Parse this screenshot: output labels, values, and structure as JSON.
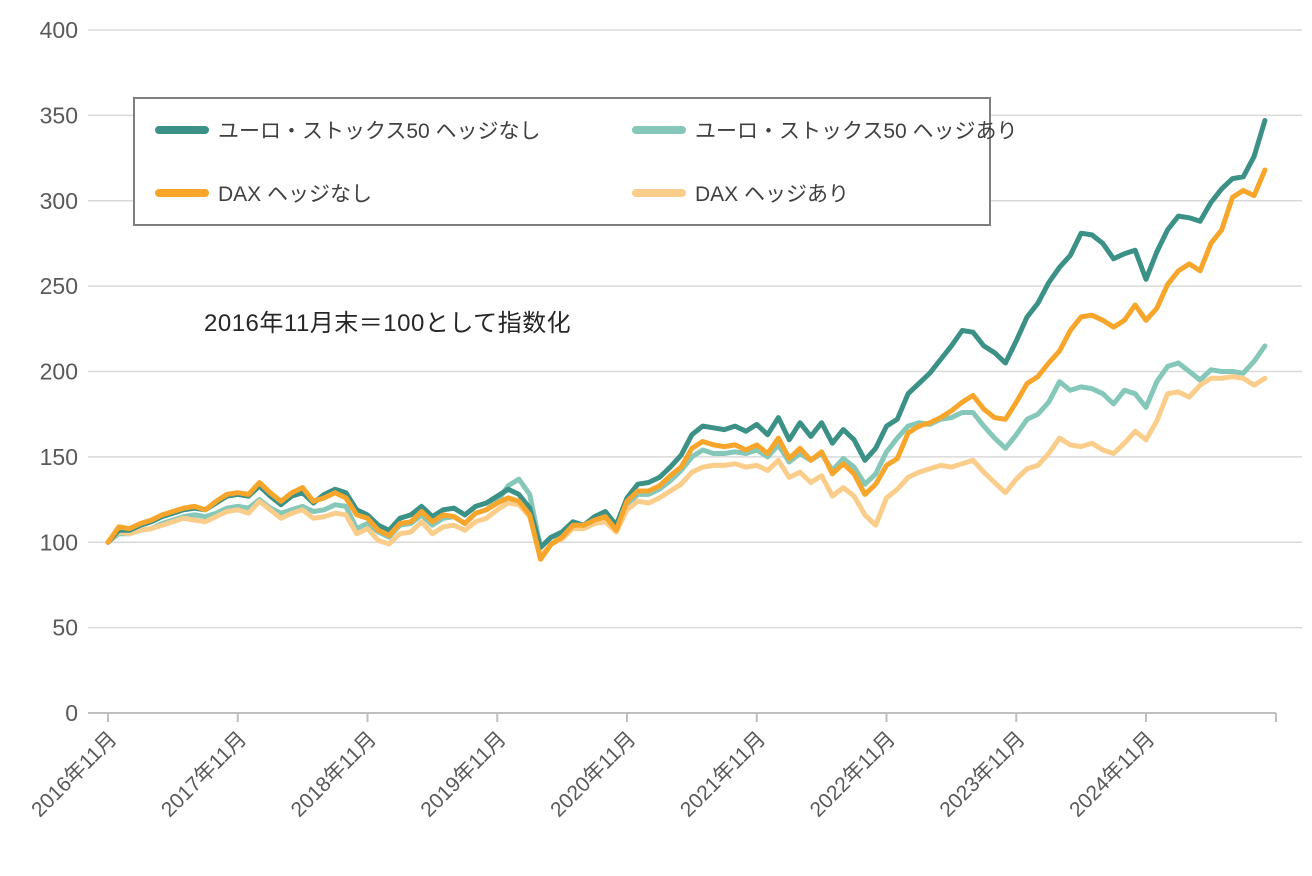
{
  "chart_data": {
    "type": "line",
    "title": "",
    "note": "2016年11月末＝100として指数化",
    "x_start": "2016-11",
    "x_end": "2025-10",
    "x_frequency": "monthly",
    "x_tick_labels": [
      "2016年11月",
      "2017年11月",
      "2018年11月",
      "2019年11月",
      "2020年11月",
      "2021年11月",
      "2022年11月",
      "2023年11月",
      "2024年11月"
    ],
    "y_ticks": [
      0,
      50,
      100,
      150,
      200,
      250,
      300,
      350,
      400
    ],
    "ylim": [
      0,
      400
    ],
    "grid": "horizontal",
    "legend_position": "top",
    "series": [
      {
        "key": "es50-unhedged",
        "name": "ユーロ・ストックス50 ヘッジなし",
        "color": "#3B9186",
        "values": [
          100,
          107,
          107,
          110,
          112,
          115,
          117,
          119,
          120,
          119,
          123,
          127,
          128,
          127,
          133,
          127,
          122,
          127,
          129,
          123,
          128,
          131,
          129,
          119,
          116,
          110,
          107,
          114,
          116,
          121,
          115,
          119,
          120,
          116,
          121,
          123,
          127,
          131,
          128,
          120,
          97,
          103,
          106,
          112,
          110,
          115,
          118,
          110,
          126,
          134,
          135,
          138,
          144,
          151,
          163,
          168,
          167,
          166,
          168,
          165,
          169,
          163,
          173,
          160,
          170,
          162,
          170,
          158,
          166,
          160,
          148,
          155,
          168,
          172,
          187,
          193,
          199,
          207,
          215,
          224,
          223,
          215,
          211,
          205,
          218,
          232,
          240,
          252,
          261,
          268,
          281,
          280,
          275,
          266,
          269,
          271,
          254,
          270,
          283,
          291,
          290,
          288,
          299,
          307,
          313,
          314,
          326,
          347
        ]
      },
      {
        "key": "es50-hedged",
        "name": "ユーロ・ストックス50 ヘッジあり",
        "color": "#85C7B8",
        "values": [
          100,
          105,
          105,
          107,
          108,
          111,
          113,
          115,
          116,
          115,
          117,
          120,
          121,
          120,
          125,
          120,
          117,
          119,
          121,
          118,
          119,
          122,
          121,
          108,
          111,
          106,
          103,
          110,
          111,
          116,
          110,
          114,
          115,
          111,
          117,
          119,
          124,
          133,
          137,
          128,
          97,
          103,
          105,
          110,
          109,
          113,
          115,
          108,
          122,
          128,
          128,
          131,
          136,
          142,
          150,
          154,
          152,
          152,
          153,
          152,
          154,
          150,
          157,
          147,
          152,
          148,
          152,
          142,
          149,
          144,
          134,
          140,
          153,
          161,
          168,
          170,
          169,
          172,
          173,
          176,
          176,
          168,
          161,
          155,
          163,
          172,
          175,
          182,
          194,
          189,
          191,
          190,
          187,
          181,
          189,
          187,
          179,
          194,
          203,
          205,
          200,
          195,
          201,
          200,
          200,
          199,
          206,
          215
        ]
      },
      {
        "key": "dax-unhedged",
        "name": "DAX ヘッジなし",
        "color": "#F8A62B",
        "values": [
          100,
          109,
          108,
          111,
          113,
          116,
          118,
          120,
          121,
          119,
          124,
          128,
          129,
          128,
          135,
          129,
          124,
          129,
          132,
          124,
          126,
          129,
          126,
          116,
          114,
          107,
          104,
          111,
          112,
          118,
          112,
          116,
          115,
          111,
          117,
          119,
          123,
          126,
          124,
          116,
          90,
          99,
          103,
          110,
          110,
          113,
          115,
          107,
          124,
          130,
          130,
          133,
          139,
          144,
          155,
          159,
          157,
          156,
          157,
          154,
          157,
          152,
          161,
          149,
          155,
          148,
          153,
          140,
          146,
          140,
          128,
          134,
          145,
          149,
          164,
          168,
          170,
          173,
          177,
          182,
          186,
          178,
          173,
          172,
          182,
          193,
          197,
          205,
          212,
          224,
          232,
          233,
          230,
          226,
          230,
          239,
          230,
          237,
          251,
          259,
          263,
          259,
          275,
          283,
          302,
          306,
          303,
          318
        ]
      },
      {
        "key": "dax-hedged",
        "name": "DAX ヘッジあり",
        "color": "#FBCD8B",
        "values": [
          100,
          106,
          105,
          107,
          108,
          110,
          112,
          114,
          113,
          112,
          115,
          118,
          119,
          117,
          124,
          119,
          114,
          117,
          119,
          114,
          115,
          117,
          116,
          105,
          108,
          101,
          99,
          105,
          106,
          112,
          105,
          109,
          110,
          107,
          112,
          114,
          119,
          123,
          122,
          115,
          92,
          99,
          102,
          108,
          108,
          111,
          112,
          106,
          119,
          124,
          123,
          126,
          130,
          134,
          141,
          144,
          145,
          145,
          146,
          144,
          145,
          142,
          148,
          138,
          141,
          135,
          139,
          127,
          132,
          127,
          116,
          110,
          126,
          131,
          138,
          141,
          143,
          145,
          144,
          146,
          148,
          141,
          135,
          129,
          137,
          143,
          145,
          152,
          161,
          157,
          156,
          158,
          154,
          152,
          158,
          165,
          160,
          171,
          187,
          188,
          185,
          192,
          196,
          196,
          197,
          196,
          192,
          196
        ]
      }
    ],
    "draw_order": [
      1,
      3,
      0,
      2
    ],
    "style": {
      "grid_color": "#d9d9d9",
      "axis_color": "#bfbfbf",
      "tick_label_color": "#595959",
      "line_width": 5
    }
  },
  "legend": {
    "items": [
      {
        "label": "ユーロ・ストックス50 ヘッジなし"
      },
      {
        "label": "ユーロ・ストックス50 ヘッジあり"
      },
      {
        "label": "DAX ヘッジなし"
      },
      {
        "label": "DAX ヘッジあり"
      }
    ]
  }
}
